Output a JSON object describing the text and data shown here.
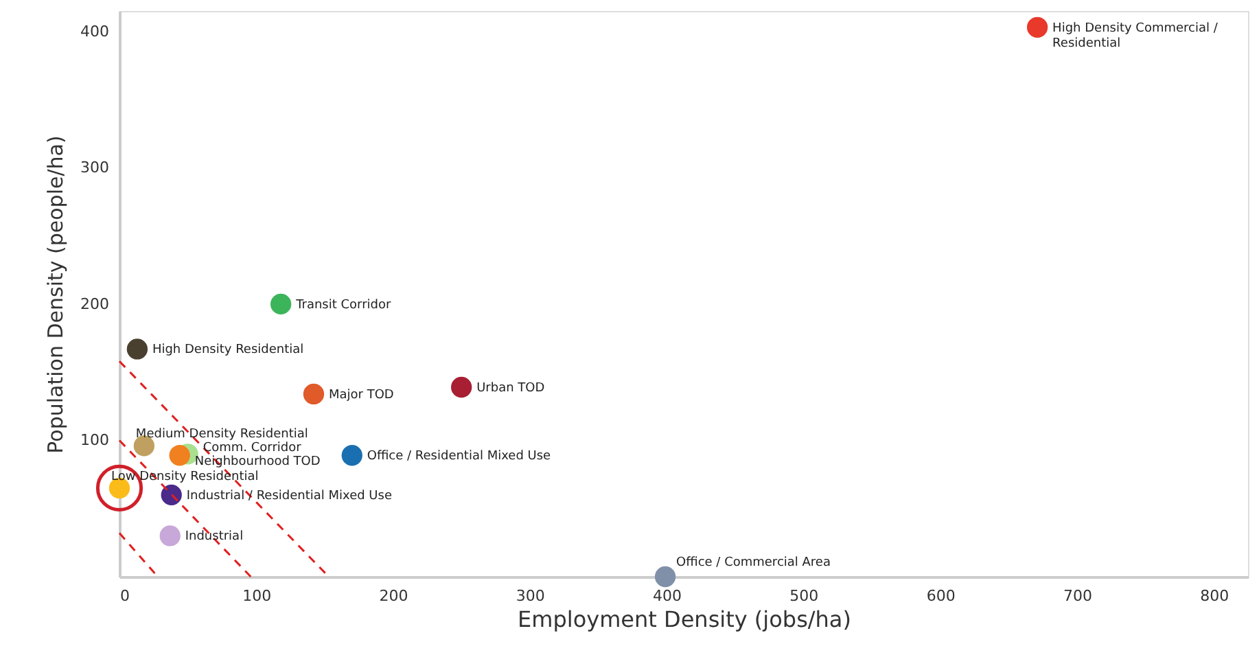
{
  "chart_data": {
    "type": "scatter",
    "xlabel": "Employment Density (jobs/ha)",
    "ylabel": "Population Density (people/ha)",
    "xlim": [
      0,
      825
    ],
    "ylim": [
      0,
      415
    ],
    "xticks": [
      0,
      100,
      200,
      300,
      400,
      500,
      600,
      700,
      800
    ],
    "yticks": [
      100,
      200,
      300,
      400
    ],
    "grid": false,
    "marker": "circle",
    "series": [
      {
        "x": [
          671,
          118,
          13,
          142,
          250,
          18,
          50,
          44,
          170,
          0,
          38,
          37,
          399
        ],
        "values": [
          403,
          200,
          167,
          134,
          139,
          96,
          90,
          89,
          89,
          65,
          60,
          30,
          0
        ],
        "colors": [
          "#e8392a",
          "#3cb45a",
          "#4a4030",
          "#e05a2a",
          "#a81e32",
          "#c0a060",
          "#a8e090",
          "#f08020",
          "#1a6fb0",
          "#fbbc1a",
          "#4a2a8a",
          "#c8a8d8",
          "#8090a8"
        ]
      },
      {
        "type": "scatter",
        "marker": "circle",
        "color": "#d0202a",
        "x": [
          0
        ],
        "values": [
          65
        ]
      },
      {
        "type": "line",
        "marker": "none",
        "line_style": "dashed",
        "color": "#e02020",
        "x": [
          0,
          153
        ],
        "values": [
          158,
          0
        ]
      },
      {
        "type": "line",
        "marker": "none",
        "line_style": "dashed",
        "color": "#e02020",
        "x": [
          0,
          96
        ],
        "values": [
          100,
          0
        ]
      },
      {
        "type": "line",
        "marker": "none",
        "line_style": "dashed",
        "color": "#e02020",
        "x": [
          0,
          28
        ],
        "values": [
          32,
          0
        ]
      }
    ],
    "annotations": [
      {
        "text": "High Density Commercial / Residential",
        "x": 671,
        "y": 403
      },
      {
        "text": "Transit Corridor",
        "x": 118,
        "y": 200
      },
      {
        "text": "High Density Residential",
        "x": 13,
        "y": 167
      },
      {
        "text": "Major TOD",
        "x": 142,
        "y": 134
      },
      {
        "text": "Urban TOD",
        "x": 250,
        "y": 139
      },
      {
        "text": "Medium Density Residential",
        "x": 18,
        "y": 96
      },
      {
        "text": "Comm. Corridor",
        "x": 50,
        "y": 90
      },
      {
        "text": "Neighbourhood TOD",
        "x": 44,
        "y": 89
      },
      {
        "text": "Office / Residential Mixed Use",
        "x": 170,
        "y": 89
      },
      {
        "text": "Low Density Residential",
        "x": 0,
        "y": 65
      },
      {
        "text": "Industrial / Residential Mixed Use",
        "x": 38,
        "y": 60
      },
      {
        "text": "Industrial",
        "x": 37,
        "y": 30
      },
      {
        "text": "Office / Commercial Area",
        "x": 399,
        "y": 0
      }
    ]
  }
}
